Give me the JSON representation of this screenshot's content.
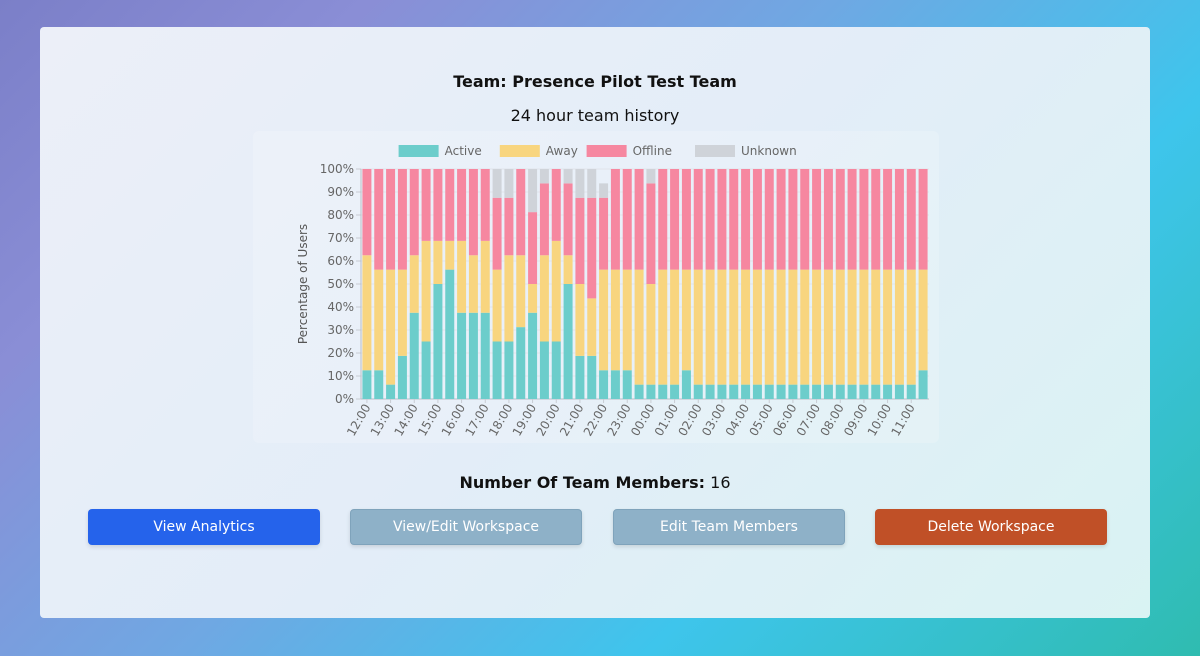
{
  "team": {
    "title": "Team: Presence Pilot Test Team"
  },
  "members": {
    "label": "Number Of Team Members:",
    "count": "16"
  },
  "buttons": {
    "analytics": "View Analytics",
    "workspace": "View/Edit Workspace",
    "edit_members": "Edit Team Members",
    "delete": "Delete Workspace"
  },
  "colors": {
    "primary": "#2563eb",
    "secondary": "#8eb1c8",
    "danger": "#c05027"
  },
  "chart_data": {
    "type": "bar",
    "stacked": true,
    "title": "24 hour team history",
    "ylabel": "Percentage of Users",
    "xlabel": "",
    "ylim": [
      0,
      100
    ],
    "ytick_labels": [
      "0%",
      "10%",
      "20%",
      "30%",
      "40%",
      "50%",
      "60%",
      "70%",
      "80%",
      "90%",
      "100%"
    ],
    "xtick_labels": [
      "12:00",
      "13:00",
      "14:00",
      "15:00",
      "16:00",
      "17:00",
      "18:00",
      "19:00",
      "20:00",
      "21:00",
      "22:00",
      "23:00",
      "00:00",
      "01:00",
      "02:00",
      "03:00",
      "04:00",
      "05:00",
      "06:00",
      "07:00",
      "08:00",
      "09:00",
      "10:00",
      "11:00"
    ],
    "legend_position": "top",
    "categories_count": 48,
    "series": [
      {
        "name": "Active",
        "color": "#6ccdcb",
        "values": [
          12.5,
          12.5,
          6.25,
          18.75,
          37.5,
          25,
          50,
          56.25,
          37.5,
          37.5,
          37.5,
          25,
          25,
          31.25,
          37.5,
          25,
          25,
          50,
          18.75,
          18.75,
          12.5,
          12.5,
          12.5,
          6.25,
          6.25,
          6.25,
          6.25,
          12.5,
          6.25,
          6.25,
          6.25,
          6.25,
          6.25,
          6.25,
          6.25,
          6.25,
          6.25,
          6.25,
          6.25,
          6.25,
          6.25,
          6.25,
          6.25,
          6.25,
          6.25,
          6.25,
          6.25,
          12.5
        ]
      },
      {
        "name": "Away",
        "color": "#f8d57f",
        "values": [
          50,
          43.75,
          50,
          37.5,
          25,
          43.75,
          18.75,
          12.5,
          31.25,
          25,
          31.25,
          31.25,
          37.5,
          31.25,
          12.5,
          37.5,
          43.75,
          12.5,
          31.25,
          25,
          43.75,
          43.75,
          43.75,
          50,
          43.75,
          50,
          50,
          43.75,
          50,
          50,
          50,
          50,
          50,
          50,
          50,
          50,
          50,
          50,
          50,
          50,
          50,
          50,
          50,
          50,
          50,
          50,
          50,
          43.75
        ]
      },
      {
        "name": "Offline",
        "color": "#f687a0",
        "values": [
          37.5,
          43.75,
          43.75,
          43.75,
          37.5,
          31.25,
          31.25,
          31.25,
          31.25,
          37.5,
          31.25,
          31.25,
          25,
          37.5,
          31.25,
          31.25,
          31.25,
          31.25,
          37.5,
          43.75,
          31.25,
          43.75,
          43.75,
          43.75,
          43.75,
          43.75,
          43.75,
          43.75,
          43.75,
          43.75,
          43.75,
          43.75,
          43.75,
          43.75,
          43.75,
          43.75,
          43.75,
          43.75,
          43.75,
          43.75,
          43.75,
          43.75,
          43.75,
          43.75,
          43.75,
          43.75,
          43.75,
          43.75
        ]
      },
      {
        "name": "Unknown",
        "color": "#cfd3d9",
        "values": [
          0,
          0,
          0,
          0,
          0,
          0,
          0,
          0,
          0,
          0,
          0,
          12.5,
          12.5,
          0,
          18.75,
          6.25,
          0,
          6.25,
          12.5,
          12.5,
          6.25,
          0,
          0,
          0,
          6.25,
          0,
          0,
          0,
          0,
          0,
          0,
          0,
          0,
          0,
          0,
          0,
          0,
          0,
          0,
          0,
          0,
          0,
          0,
          0,
          0,
          0,
          0,
          0
        ]
      }
    ]
  }
}
